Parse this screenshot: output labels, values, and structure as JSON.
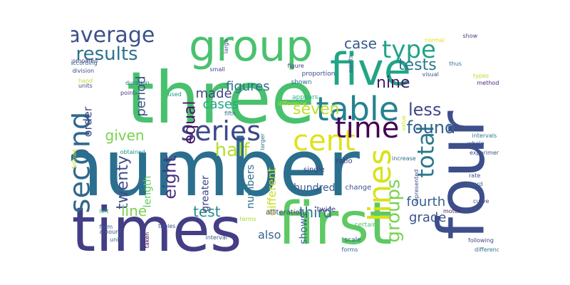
{
  "words": [
    {
      "text": "number",
      "color": "#2b6f8e",
      "rotated": false
    },
    {
      "text": "three",
      "color": "#48c16e",
      "rotated": false
    },
    {
      "text": "four",
      "color": "#3d4e8a",
      "rotated": true
    },
    {
      "text": "times",
      "color": "#433e85",
      "rotated": false
    },
    {
      "text": "first",
      "color": "#5ec962",
      "rotated": false
    },
    {
      "text": "five",
      "color": "#21a585",
      "rotated": false
    },
    {
      "text": "group",
      "color": "#4ac16d",
      "rotated": false
    },
    {
      "text": "average",
      "color": "#3b528b",
      "rotated": false
    },
    {
      "text": "table",
      "color": "#26828e",
      "rotated": false
    },
    {
      "text": "series",
      "color": "#3e4989",
      "rotated": false
    },
    {
      "text": "cent",
      "color": "#dde318",
      "rotated": false
    },
    {
      "text": "time",
      "color": "#440154",
      "rotated": false
    },
    {
      "text": "second",
      "color": "#31688e",
      "rotated": true
    },
    {
      "text": "results",
      "color": "#2c728e",
      "rotated": false
    },
    {
      "text": "type",
      "color": "#20a486",
      "rotated": false
    },
    {
      "text": "lines",
      "color": "#d8e219",
      "rotated": true
    },
    {
      "text": "total",
      "color": "#2a788e",
      "rotated": true
    },
    {
      "text": "groups",
      "color": "#7ad151",
      "rotated": true
    },
    {
      "text": "tests",
      "color": "#2a788e",
      "rotated": false
    },
    {
      "text": "half",
      "color": "#b5de2b",
      "rotated": false
    },
    {
      "text": "less",
      "color": "#404688",
      "rotated": false
    },
    {
      "text": "found",
      "color": "#33638d",
      "rotated": false
    },
    {
      "text": "seven",
      "color": "#bddf26",
      "rotated": false
    },
    {
      "text": "nine",
      "color": "#481769",
      "rotated": false
    },
    {
      "text": "case",
      "color": "#38598c",
      "rotated": false
    },
    {
      "text": "figures",
      "color": "#2e6e8e",
      "rotated": false
    },
    {
      "text": "given",
      "color": "#7ad151",
      "rotated": false
    },
    {
      "text": "twenty",
      "color": "#3e4c8a",
      "rotated": true
    },
    {
      "text": "eight",
      "color": "#46327e",
      "rotated": true
    },
    {
      "text": "equal",
      "color": "#471365",
      "rotated": true
    },
    {
      "text": "made",
      "color": "#3f4788",
      "rotated": false
    },
    {
      "text": "cases",
      "color": "#22a884",
      "rotated": false
    },
    {
      "text": "period",
      "color": "#3b528b",
      "rotated": true
    },
    {
      "text": "order",
      "color": "#3d4d8a",
      "rotated": true
    },
    {
      "text": "line",
      "color": "#7ad151",
      "rotated": false
    },
    {
      "text": "test",
      "color": "#238a8d",
      "rotated": false
    },
    {
      "text": "third",
      "color": "#2c718e",
      "rotated": false
    },
    {
      "text": "fourth",
      "color": "#35608d",
      "rotated": false
    },
    {
      "text": "grade",
      "color": "#3a538b",
      "rotated": false
    },
    {
      "text": "hundred",
      "color": "#365c8d",
      "rotated": false
    },
    {
      "text": "numbers",
      "color": "#2d708e",
      "rotated": true
    },
    {
      "text": "different",
      "color": "#c8e020",
      "rotated": true
    },
    {
      "text": "greater",
      "color": "#404387",
      "rotated": true
    },
    {
      "text": "length",
      "color": "#5ec962",
      "rotated": true
    },
    {
      "text": "shows",
      "color": "#34618d",
      "rotated": true
    },
    {
      "text": "also",
      "color": "#31688e",
      "rotated": false
    },
    {
      "text": "ratio",
      "color": "#453882",
      "rotated": false
    },
    {
      "text": "change",
      "color": "#3a548c",
      "rotated": false
    },
    {
      "text": "twice",
      "color": "#472f7d",
      "rotated": false
    },
    {
      "text": "single",
      "color": "#3f4788",
      "rotated": false
    },
    {
      "text": "alliteration",
      "color": "#443a83",
      "rotated": false
    },
    {
      "text": "terms",
      "color": "#a0da39",
      "rotated": false
    },
    {
      "text": "scale",
      "color": "#355f8d",
      "rotated": false
    },
    {
      "text": "forms",
      "color": "#33638d",
      "rotated": false
    },
    {
      "text": "certain",
      "color": "#4ac16d",
      "rotated": false
    },
    {
      "text": "shown",
      "color": "#2e6f8e",
      "rotated": false
    },
    {
      "text": "proportion",
      "color": "#3e4a89",
      "rotated": false
    },
    {
      "text": "appears",
      "color": "#2ab07f",
      "rotated": false
    },
    {
      "text": "difference",
      "color": "#c0df25",
      "rotated": false
    },
    {
      "text": "fifth",
      "color": "#2b748e",
      "rotated": false
    },
    {
      "text": "used",
      "color": "#1f978b",
      "rotated": false
    },
    {
      "text": "point",
      "color": "#443983",
      "rotated": false
    },
    {
      "text": "period",
      "color": "#3b528b",
      "rotated": false,
      "hidden": true
    },
    {
      "text": "compared",
      "color": "#453781",
      "rotated": false
    },
    {
      "text": "according",
      "color": "#31688e",
      "rotated": false
    },
    {
      "text": "division",
      "color": "#3e4989",
      "rotated": false
    },
    {
      "text": "duration",
      "color": "#2c728e",
      "rotated": false
    },
    {
      "text": "hand",
      "color": "#c2df23",
      "rotated": false
    },
    {
      "text": "units",
      "color": "#3e4989",
      "rotated": false
    },
    {
      "text": "obtained",
      "color": "#1f958b",
      "rotated": false
    },
    {
      "text": "follows",
      "color": "#b8de29",
      "rotated": true
    },
    {
      "text": "left",
      "color": "#22a785",
      "rotated": false
    },
    {
      "text": "form",
      "color": "#34608d",
      "rotated": false
    },
    {
      "text": "amount",
      "color": "#3c508b",
      "rotated": false
    },
    {
      "text": "unit",
      "color": "#2e6e8e",
      "rotated": false
    },
    {
      "text": "taken",
      "color": "#440154",
      "rotated": true
    },
    {
      "text": "tables",
      "color": "#3a548c",
      "rotated": false
    },
    {
      "text": "interval",
      "color": "#38588c",
      "rotated": false
    },
    {
      "text": "larger",
      "color": "#2d708e",
      "rotated": true
    },
    {
      "text": "small",
      "color": "#3f4788",
      "rotated": false
    },
    {
      "text": "large",
      "color": "#3d4e8a",
      "rotated": true
    },
    {
      "text": "figure",
      "color": "#424086",
      "rotated": false
    },
    {
      "text": "points",
      "color": "#355f8d",
      "rotated": true
    },
    {
      "text": "value",
      "color": "#d2e21b",
      "rotated": true
    },
    {
      "text": "normal",
      "color": "#dde318",
      "rotated": false
    },
    {
      "text": "show",
      "color": "#414487",
      "rotated": false
    },
    {
      "text": "visual",
      "color": "#3b528b",
      "rotated": false
    },
    {
      "text": "thus",
      "color": "#2c728e",
      "rotated": false
    },
    {
      "text": "types",
      "color": "#b5de2b",
      "rotated": false
    },
    {
      "text": "method",
      "color": "#472a7a",
      "rotated": false
    },
    {
      "text": "intervals",
      "color": "#2a788e",
      "rotated": false
    },
    {
      "text": "whole",
      "color": "#3a548c",
      "rotated": false
    },
    {
      "text": "experiments",
      "color": "#3b528b",
      "rotated": false
    },
    {
      "text": "increase",
      "color": "#2f6c8e",
      "rotated": false
    },
    {
      "text": "rate",
      "color": "#3e4989",
      "rotated": false
    },
    {
      "text": "record",
      "color": "#31688e",
      "rotated": false
    },
    {
      "text": "motor",
      "color": "#481b6d",
      "rotated": false
    },
    {
      "text": "curve",
      "color": "#3f4889",
      "rotated": false
    },
    {
      "text": "represented",
      "color": "#3e4c8a",
      "rotated": true
    },
    {
      "text": "following",
      "color": "#3e4989",
      "rotated": false
    },
    {
      "text": "differences",
      "color": "#2c728e",
      "rotated": false
    }
  ]
}
